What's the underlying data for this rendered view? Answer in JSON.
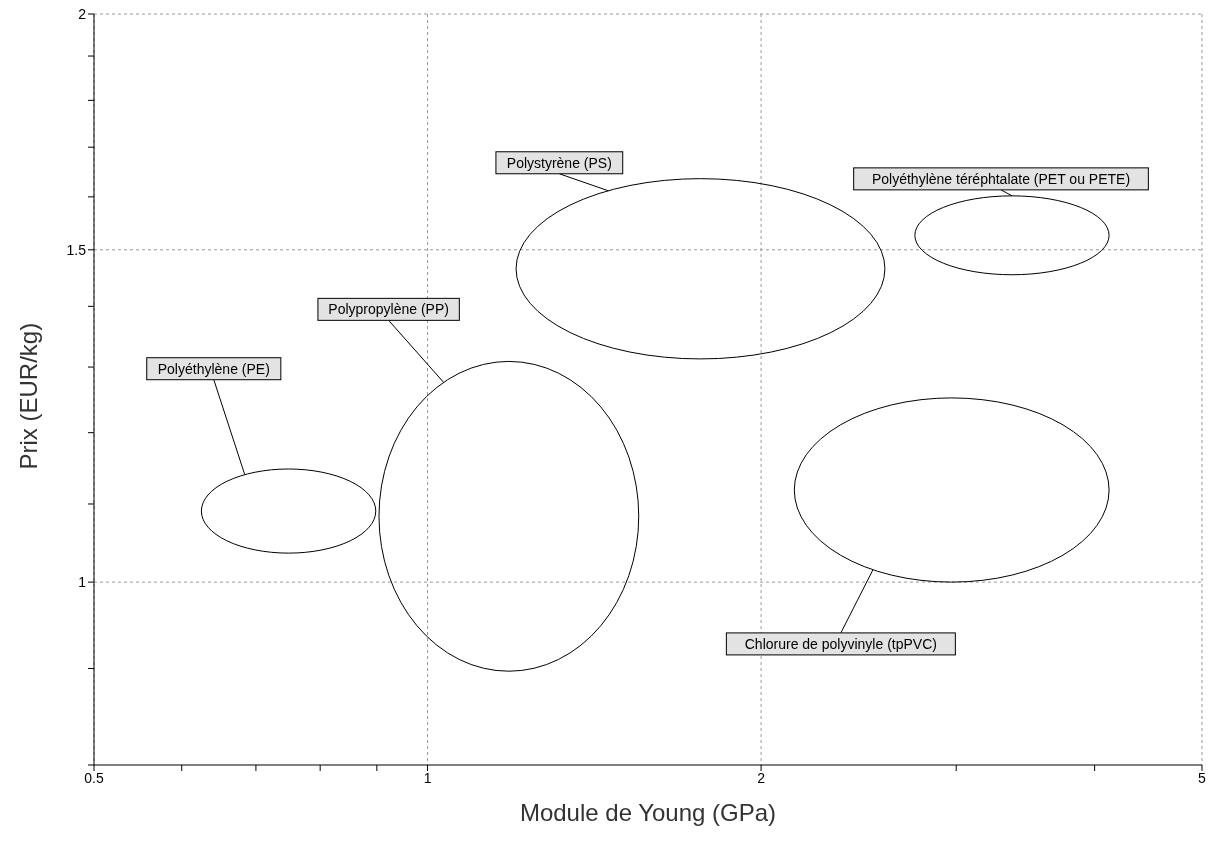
{
  "chart_data": {
    "type": "scatter",
    "xlabel": "Module de Young (GPa)",
    "ylabel": "Prix (EUR/kg)",
    "log": "xy",
    "grid": true,
    "xlim": [
      0.5,
      5
    ],
    "ylim": [
      0.8,
      2
    ],
    "xticks": [
      0.5,
      {
        "value": 0.6,
        "label": null
      },
      {
        "value": 0.7,
        "label": null
      },
      {
        "value": 0.8,
        "label": null
      },
      {
        "value": 0.9,
        "label": null
      },
      1,
      2,
      {
        "value": 3,
        "label": null
      },
      {
        "value": 4,
        "label": null
      },
      5
    ],
    "yticks": [
      {
        "value": 0.8,
        "label": null
      },
      {
        "value": 0.9,
        "label": null
      },
      1,
      {
        "value": 1.1,
        "label": null
      },
      {
        "value": 1.2,
        "label": null
      },
      {
        "value": 1.3,
        "label": null
      },
      {
        "value": 1.4,
        "label": null
      },
      1.5,
      {
        "value": 1.6,
        "label": null
      },
      {
        "value": 1.7,
        "label": null
      },
      {
        "value": 1.8,
        "label": null
      },
      {
        "value": 1.9,
        "label": null
      },
      2
    ],
    "annotations": [
      "Polyéthylène (PE)",
      "Polypropylène (PP)",
      "Polystyrène (PS)",
      "Polyéthylène téréphtalate (PET ou PETE)",
      "Chlorure de polyvinyle (tpPVC)"
    ]
  }
}
